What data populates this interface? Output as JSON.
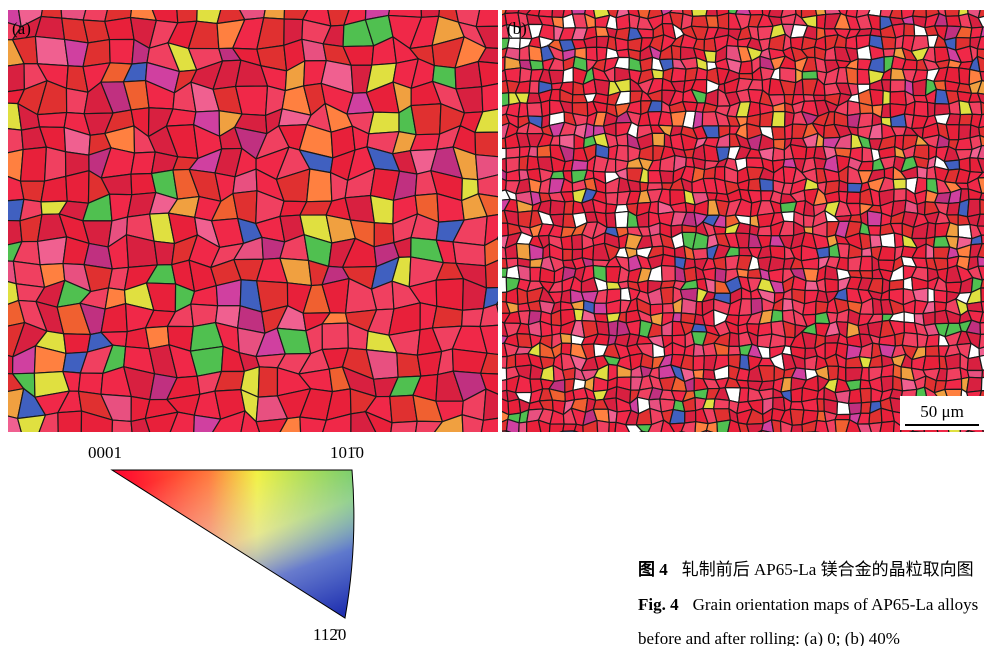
{
  "figure": {
    "panels": [
      {
        "label": "(a)"
      },
      {
        "label": "(b)"
      }
    ],
    "scale_bar": "50 μm",
    "legend": {
      "top_left": "0001",
      "top_right": "101̄0",
      "bottom": "112̄0"
    },
    "caption": {
      "cn_label": "图 4",
      "cn_text": "轧制前后 AP65-La 镁合金的晶粒取向图",
      "en_label": "Fig. 4",
      "en_text_1": "Grain orientation maps of AP65-La alloys",
      "en_text_2": "before and after rolling: (a) 0; (b) 40%"
    }
  }
}
